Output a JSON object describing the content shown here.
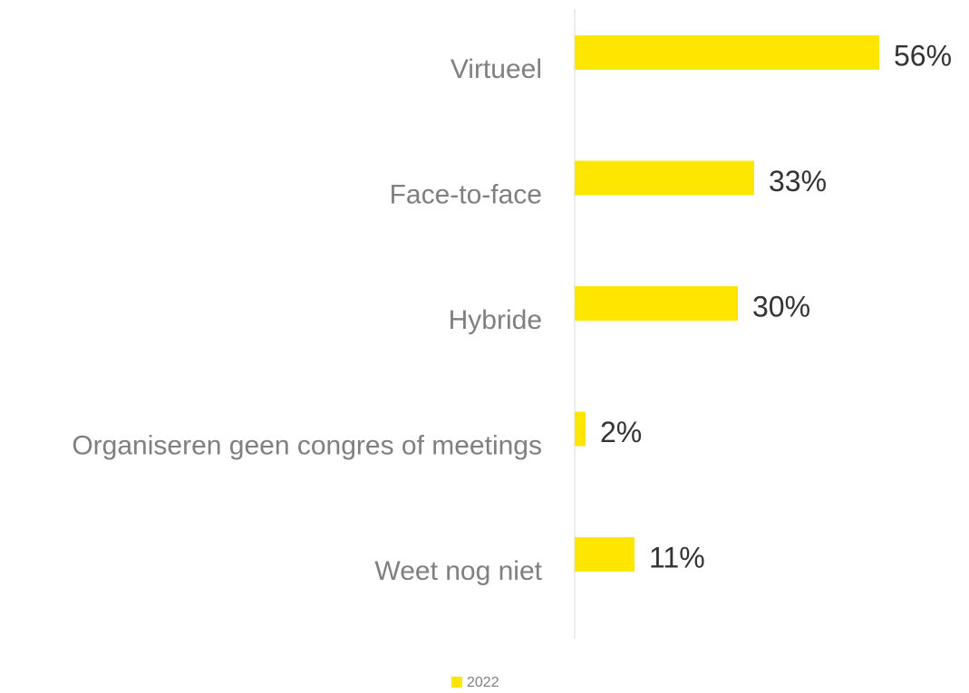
{
  "chart_data": {
    "type": "hbar",
    "categories": [
      "Virtueel",
      "Face-to-face",
      "Hybride",
      "Organiseren geen congres of meetings",
      "Weet nog niet"
    ],
    "series": [
      {
        "name": "2022",
        "color": "#ffe600",
        "values": [
          56,
          33,
          30,
          2,
          11
        ],
        "value_labels": [
          "56%",
          "33%",
          "30%",
          "2%",
          "11%"
        ]
      }
    ]
  }
}
